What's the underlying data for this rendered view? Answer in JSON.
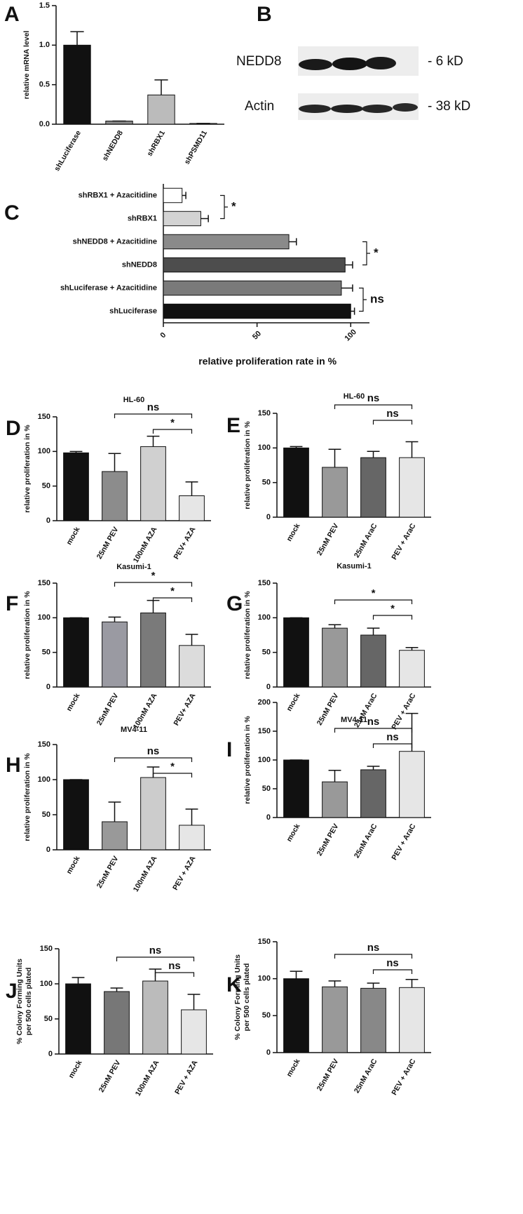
{
  "chart_data": [
    {
      "type": "bar",
      "panel": "A",
      "ylabel": "relative mRNA level",
      "categories": [
        "shLuciferase",
        "shNEDD8",
        "shRBX1",
        "shPSMD11"
      ],
      "values": [
        1.0,
        0.04,
        0.37,
        0.01
      ],
      "errors": [
        0.17,
        0,
        0.19,
        0
      ],
      "colors": [
        "#111111",
        "#888888",
        "#bbbbbb",
        "#dddddd"
      ],
      "ylim": [
        0,
        1.5
      ],
      "yticks": [
        {
          "value": 0,
          "label": "0.0"
        },
        0.5,
        {
          "value": 1,
          "label": "1.0"
        },
        1.5
      ]
    },
    {
      "type": "barh",
      "panel": "C",
      "xlabel": "relative proliferation rate in %",
      "categories": [
        "shLuciferase",
        "shLuciferase + Azacitidine",
        "shNEDD8",
        "shNEDD8 + Azacitidine",
        "shRBX1",
        "shRBX1 + Azacitidine"
      ],
      "values": [
        100,
        95,
        97,
        67,
        20,
        10
      ],
      "errors": [
        2,
        6,
        4,
        4,
        4,
        2
      ],
      "colors": [
        "#111111",
        "#7a7a7a",
        "#4d4d4d",
        "#8a8a8a",
        "#d3d3d3",
        "#ffffff"
      ],
      "xlim": [
        0,
        110
      ],
      "xticks": [
        0,
        50,
        100
      ],
      "annotations": [
        "*",
        "*",
        "ns"
      ]
    },
    {
      "type": "bar",
      "panel": "D",
      "title": "HL-60",
      "ylabel": "relative proliferation in %",
      "categories": [
        "mock",
        "25nM PEV",
        "100nM AZA",
        "PEV+ AZA"
      ],
      "values": [
        98,
        71,
        107,
        36
      ],
      "errors": [
        2,
        26,
        15,
        20
      ],
      "colors": [
        "#111111",
        "#8c8c8c",
        "#d0d0d0",
        "#e6e6e6"
      ],
      "ylim": [
        0,
        150
      ],
      "yticks": [
        0,
        50,
        100,
        150
      ],
      "annotations": [
        "ns",
        "*"
      ]
    },
    {
      "type": "bar",
      "panel": "E",
      "title": "HL-60",
      "ylabel": "relative proliferation in %",
      "categories": [
        "mock",
        "25nM PEV",
        "25nM AraC",
        "PEV + AraC"
      ],
      "values": [
        100,
        72,
        86,
        86
      ],
      "errors": [
        2,
        26,
        9,
        23
      ],
      "colors": [
        "#111111",
        "#999999",
        "#666666",
        "#e6e6e6"
      ],
      "ylim": [
        0,
        150
      ],
      "yticks": [
        0,
        50,
        100,
        150
      ],
      "annotations": [
        "ns",
        "ns"
      ]
    },
    {
      "type": "bar",
      "panel": "F",
      "title": "Kasumi-1",
      "ylabel": "relative proliferation in %",
      "categories": [
        "mock",
        "25nM PEV",
        "100nM AZA",
        "PEV+ AZA"
      ],
      "values": [
        100,
        94,
        107,
        60
      ],
      "errors": [
        0,
        7,
        18,
        16
      ],
      "colors": [
        "#111111",
        "#9a9aa2",
        "#7a7a7a",
        "#dcdcdc"
      ],
      "ylim": [
        0,
        150
      ],
      "yticks": [
        0,
        50,
        100,
        150
      ],
      "annotations": [
        "*",
        "*"
      ]
    },
    {
      "type": "bar",
      "panel": "G",
      "title": "Kasumi-1",
      "ylabel": "relative proliferation in %",
      "categories": [
        "mock",
        "25nM PEV",
        "25nM AraC",
        "PEV + AraC"
      ],
      "values": [
        100,
        85,
        75,
        53
      ],
      "errors": [
        0,
        5,
        10,
        4
      ],
      "colors": [
        "#111111",
        "#999999",
        "#666666",
        "#e6e6e6"
      ],
      "ylim": [
        0,
        150
      ],
      "yticks": [
        0,
        50,
        100,
        150
      ],
      "annotations": [
        "*",
        "*"
      ]
    },
    {
      "type": "bar",
      "panel": "H",
      "title": "MV4-11",
      "ylabel": "relative proliferation in %",
      "categories": [
        "mock",
        "25nM PEV",
        "100nM AZA",
        "PEV + AZA"
      ],
      "values": [
        100,
        40,
        103,
        35
      ],
      "errors": [
        0,
        28,
        15,
        23
      ],
      "colors": [
        "#111111",
        "#999999",
        "#cccccc",
        "#e6e6e6"
      ],
      "ylim": [
        0,
        150
      ],
      "yticks": [
        0,
        50,
        100,
        150
      ],
      "annotations": [
        "ns",
        "*"
      ]
    },
    {
      "type": "bar",
      "panel": "I",
      "title": "MV4-11",
      "ylabel": "relative proliferation in %",
      "categories": [
        "mock",
        "25nM PEV",
        "25nM AraC",
        "PEV + AraC"
      ],
      "values": [
        100,
        62,
        83,
        115
      ],
      "errors": [
        0,
        20,
        6,
        66
      ],
      "colors": [
        "#111111",
        "#999999",
        "#666666",
        "#e6e6e6"
      ],
      "ylim": [
        0,
        200
      ],
      "yticks": [
        0,
        50,
        100,
        150,
        200
      ],
      "annotations": [
        "ns",
        "ns"
      ]
    },
    {
      "type": "bar",
      "panel": "J",
      "ylabel": [
        "% Colony Forming Units",
        "per 500 cells plated"
      ],
      "categories": [
        "mock",
        "25nM PEV",
        "100nM AZA",
        "PEV + AZA"
      ],
      "values": [
        100,
        89,
        104,
        63
      ],
      "errors": [
        9,
        5,
        17,
        22
      ],
      "colors": [
        "#111111",
        "#777777",
        "#bbbbbb",
        "#e6e6e6"
      ],
      "ylim": [
        0,
        150
      ],
      "yticks": [
        0,
        50,
        100,
        150
      ],
      "annotations": [
        "ns",
        "ns"
      ]
    },
    {
      "type": "bar",
      "panel": "K",
      "ylabel": [
        "% Colony Forming Units",
        "per 500 cells plated"
      ],
      "categories": [
        "mock",
        "25nM PEV",
        "25nM AraC",
        "PEV + AraC"
      ],
      "values": [
        100,
        89,
        87,
        88
      ],
      "errors": [
        10,
        8,
        7,
        11
      ],
      "colors": [
        "#111111",
        "#999999",
        "#888888",
        "#e6e6e6"
      ],
      "ylim": [
        0,
        150
      ],
      "yticks": [
        0,
        50,
        100,
        150
      ],
      "annotations": [
        "ns",
        "ns"
      ]
    }
  ],
  "blot": {
    "panel": "B",
    "rows": [
      {
        "protein": "NEDD8",
        "size": "- 6 kD"
      },
      {
        "protein": "Actin",
        "size": "- 38 kD"
      }
    ]
  }
}
